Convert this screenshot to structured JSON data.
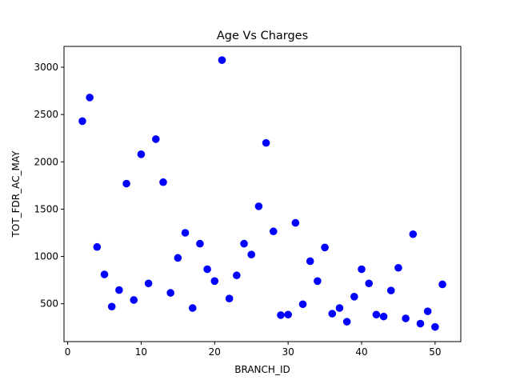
{
  "chart_data": {
    "type": "scatter",
    "title": "Age Vs Charges",
    "xlabel": "BRANCH_ID",
    "ylabel": "TOT_FDR_AC_MAY",
    "xlim": [
      -0.5,
      53.5
    ],
    "ylim": [
      100,
      3220
    ],
    "xticks": [
      0,
      10,
      20,
      30,
      40,
      50
    ],
    "yticks": [
      500,
      1000,
      1500,
      2000,
      2500,
      3000
    ],
    "grid": false,
    "legend": "none",
    "marker_color": "#0000ff",
    "series": [
      {
        "x": [
          2,
          3,
          4,
          5,
          6,
          7,
          8,
          9,
          10,
          11,
          12,
          13,
          14,
          15,
          16,
          17,
          18,
          19,
          20,
          21,
          22,
          23,
          24,
          25,
          26,
          27,
          28,
          29,
          30,
          31,
          32,
          33,
          34,
          35,
          36,
          37,
          38,
          39,
          40,
          41,
          42,
          43,
          44,
          45,
          46,
          47,
          48,
          49,
          50,
          51
        ],
        "y": [
          2430,
          2680,
          1100,
          810,
          470,
          645,
          1770,
          540,
          2080,
          715,
          2240,
          1785,
          615,
          985,
          1250,
          455,
          1135,
          865,
          740,
          3075,
          555,
          800,
          1135,
          1020,
          1530,
          2200,
          1265,
          380,
          385,
          1355,
          495,
          950,
          740,
          1095,
          395,
          455,
          310,
          575,
          865,
          715,
          385,
          365,
          640,
          880,
          345,
          1235,
          290,
          420,
          255,
          705
        ]
      }
    ]
  }
}
